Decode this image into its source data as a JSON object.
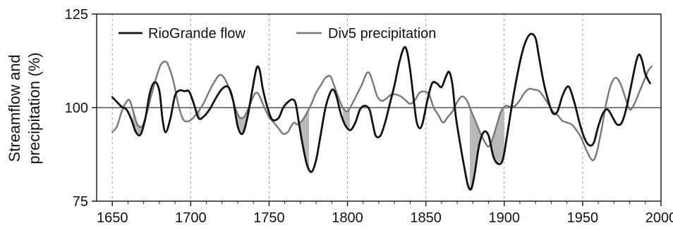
{
  "chart_data": {
    "type": "line",
    "title": "",
    "ylabel_line1": "Streamflow and",
    "ylabel_line2": "precipitation (%)",
    "xlabel": "",
    "xlim": [
      1640,
      2000
    ],
    "ylim": [
      75,
      125
    ],
    "x_ticks": [
      "1650",
      "1700",
      "1750",
      "1800",
      "1850",
      "1900",
      "1950",
      "2000"
    ],
    "y_ticks": [
      "75",
      "100",
      "125"
    ],
    "reference_line": 100,
    "grid": "vertical dashed at x ticks",
    "legend_placement": "top-left",
    "shading": "gray fill between the two series where the RioGrande flow series is below Div5 precipitation",
    "series": [
      {
        "name": "RioGrande flow",
        "color": "#111111",
        "points": [
          [
            1650,
            102.8
          ],
          [
            1653,
            101.5
          ],
          [
            1656,
            100.2
          ],
          [
            1659,
            99.5
          ],
          [
            1662,
            97.0
          ],
          [
            1665,
            93.5
          ],
          [
            1668,
            92.8
          ],
          [
            1671,
            97.0
          ],
          [
            1674,
            104.0
          ],
          [
            1677,
            106.8
          ],
          [
            1680,
            104.5
          ],
          [
            1682,
            97.0
          ],
          [
            1684,
            93.4
          ],
          [
            1687,
            97.0
          ],
          [
            1690,
            103.2
          ],
          [
            1693,
            104.6
          ],
          [
            1696,
            104.4
          ],
          [
            1699,
            104.3
          ],
          [
            1702,
            101.0
          ],
          [
            1705,
            97.2
          ],
          [
            1708,
            97.5
          ],
          [
            1712,
            99.5
          ],
          [
            1716,
            102.5
          ],
          [
            1720,
            105.0
          ],
          [
            1724,
            105.5
          ],
          [
            1727,
            102.0
          ],
          [
            1730,
            95.0
          ],
          [
            1733,
            93.0
          ],
          [
            1736,
            97.0
          ],
          [
            1739,
            104.0
          ],
          [
            1742,
            110.5
          ],
          [
            1744,
            110.0
          ],
          [
            1746,
            105.0
          ],
          [
            1749,
            100.0
          ],
          [
            1752,
            96.8
          ],
          [
            1756,
            97.2
          ],
          [
            1759,
            100.0
          ],
          [
            1762,
            101.5
          ],
          [
            1765,
            102.2
          ],
          [
            1767,
            101.0
          ],
          [
            1769,
            96.0
          ],
          [
            1771,
            91.0
          ],
          [
            1774,
            85.0
          ],
          [
            1777,
            82.8
          ],
          [
            1780,
            86.0
          ],
          [
            1783,
            93.0
          ],
          [
            1786,
            100.0
          ],
          [
            1789,
            104.0
          ],
          [
            1791,
            104.8
          ],
          [
            1793,
            103.0
          ],
          [
            1796,
            98.0
          ],
          [
            1799,
            95.0
          ],
          [
            1802,
            94.0
          ],
          [
            1805,
            96.0
          ],
          [
            1808,
            99.5
          ],
          [
            1811,
            100.5
          ],
          [
            1814,
            99.5
          ],
          [
            1816,
            96.0
          ],
          [
            1818,
            92.5
          ],
          [
            1821,
            92.5
          ],
          [
            1824,
            96.0
          ],
          [
            1827,
            101.0
          ],
          [
            1830,
            106.0
          ],
          [
            1833,
            112.0
          ],
          [
            1836,
            116.0
          ],
          [
            1838,
            115.0
          ],
          [
            1840,
            110.0
          ],
          [
            1842,
            103.0
          ],
          [
            1844,
            96.5
          ],
          [
            1846,
            94.5
          ],
          [
            1848,
            96.0
          ],
          [
            1851,
            102.0
          ],
          [
            1854,
            106.5
          ],
          [
            1857,
            106.5
          ],
          [
            1860,
            105.5
          ],
          [
            1863,
            108.5
          ],
          [
            1865,
            109.5
          ],
          [
            1867,
            106.0
          ],
          [
            1869,
            98.0
          ],
          [
            1872,
            90.0
          ],
          [
            1875,
            83.0
          ],
          [
            1877,
            79.0
          ],
          [
            1879,
            78.3
          ],
          [
            1881,
            82.0
          ],
          [
            1884,
            90.0
          ],
          [
            1887,
            93.5
          ],
          [
            1890,
            92.5
          ],
          [
            1893,
            87.0
          ],
          [
            1896,
            85.0
          ],
          [
            1899,
            86.0
          ],
          [
            1902,
            93.0
          ],
          [
            1905,
            101.0
          ],
          [
            1908,
            108.0
          ],
          [
            1911,
            114.0
          ],
          [
            1914,
            118.0
          ],
          [
            1917,
            119.7
          ],
          [
            1920,
            118.5
          ],
          [
            1922,
            114.0
          ],
          [
            1925,
            107.0
          ],
          [
            1928,
            102.0
          ],
          [
            1931,
            98.5
          ],
          [
            1934,
            99.0
          ],
          [
            1937,
            103.0
          ],
          [
            1940,
            105.5
          ],
          [
            1942,
            105.0
          ],
          [
            1945,
            101.0
          ],
          [
            1948,
            96.0
          ],
          [
            1951,
            92.0
          ],
          [
            1954,
            90.0
          ],
          [
            1957,
            90.5
          ],
          [
            1960,
            95.0
          ],
          [
            1963,
            98.5
          ],
          [
            1966,
            99.5
          ],
          [
            1969,
            97.5
          ],
          [
            1972,
            95.5
          ],
          [
            1975,
            96.0
          ],
          [
            1978,
            100.0
          ],
          [
            1981,
            106.0
          ],
          [
            1984,
            112.0
          ],
          [
            1986,
            114.2
          ],
          [
            1988,
            112.5
          ],
          [
            1990,
            109.0
          ],
          [
            1993,
            106.5
          ]
        ]
      },
      {
        "name": "Div5 precipitation",
        "color": "#777777",
        "points": [
          [
            1650,
            93.5
          ],
          [
            1653,
            95.0
          ],
          [
            1656,
            99.0
          ],
          [
            1659,
            101.5
          ],
          [
            1661,
            102.0
          ],
          [
            1663,
            99.5
          ],
          [
            1666,
            95.5
          ],
          [
            1669,
            95.0
          ],
          [
            1672,
            98.5
          ],
          [
            1675,
            103.5
          ],
          [
            1678,
            108.0
          ],
          [
            1681,
            111.5
          ],
          [
            1684,
            112.3
          ],
          [
            1686,
            111.0
          ],
          [
            1689,
            107.0
          ],
          [
            1692,
            101.0
          ],
          [
            1695,
            97.0
          ],
          [
            1698,
            96.3
          ],
          [
            1701,
            97.0
          ],
          [
            1704,
            98.5
          ],
          [
            1708,
            101.0
          ],
          [
            1712,
            104.5
          ],
          [
            1716,
            107.5
          ],
          [
            1719,
            108.8
          ],
          [
            1722,
            107.5
          ],
          [
            1725,
            104.5
          ],
          [
            1728,
            100.5
          ],
          [
            1731,
            97.5
          ],
          [
            1734,
            97.5
          ],
          [
            1737,
            100.0
          ],
          [
            1740,
            103.0
          ],
          [
            1742,
            104.0
          ],
          [
            1744,
            103.0
          ],
          [
            1747,
            100.0
          ],
          [
            1750,
            97.5
          ],
          [
            1753,
            96.0
          ],
          [
            1756,
            94.5
          ],
          [
            1759,
            93.0
          ],
          [
            1762,
            93.5
          ],
          [
            1764,
            95.0
          ],
          [
            1766,
            96.0
          ],
          [
            1768,
            95.5
          ],
          [
            1771,
            96.5
          ],
          [
            1774,
            98.5
          ],
          [
            1777,
            101.0
          ],
          [
            1780,
            104.0
          ],
          [
            1783,
            106.0
          ],
          [
            1786,
            108.0
          ],
          [
            1789,
            108.4
          ],
          [
            1791,
            106.5
          ],
          [
            1794,
            103.0
          ],
          [
            1797,
            100.0
          ],
          [
            1800,
            99.0
          ],
          [
            1803,
            101.0
          ],
          [
            1806,
            103.5
          ],
          [
            1809,
            106.0
          ],
          [
            1812,
            109.0
          ],
          [
            1814,
            109.2
          ],
          [
            1816,
            107.0
          ],
          [
            1819,
            103.0
          ],
          [
            1822,
            101.8
          ],
          [
            1825,
            102.5
          ],
          [
            1828,
            103.5
          ],
          [
            1831,
            103.5
          ],
          [
            1834,
            103.0
          ],
          [
            1837,
            102.0
          ],
          [
            1840,
            101.0
          ],
          [
            1843,
            102.0
          ],
          [
            1846,
            104.0
          ],
          [
            1849,
            104.3
          ],
          [
            1852,
            103.5
          ],
          [
            1855,
            100.0
          ],
          [
            1858,
            98.0
          ],
          [
            1861,
            96.0
          ],
          [
            1864,
            97.5
          ],
          [
            1867,
            99.0
          ],
          [
            1870,
            101.5
          ],
          [
            1873,
            103.0
          ],
          [
            1876,
            102.0
          ],
          [
            1879,
            99.0
          ],
          [
            1882,
            96.0
          ],
          [
            1885,
            93.0
          ],
          [
            1888,
            90.5
          ],
          [
            1890,
            89.6
          ],
          [
            1892,
            91.0
          ],
          [
            1895,
            95.0
          ],
          [
            1898,
            99.0
          ],
          [
            1901,
            100.5
          ],
          [
            1904,
            100.2
          ],
          [
            1907,
            100.5
          ],
          [
            1910,
            102.0
          ],
          [
            1913,
            104.0
          ],
          [
            1916,
            105.0
          ],
          [
            1919,
            104.8
          ],
          [
            1922,
            104.5
          ],
          [
            1925,
            103.0
          ],
          [
            1928,
            101.0
          ],
          [
            1931,
            99.0
          ],
          [
            1934,
            98.0
          ],
          [
            1937,
            96.5
          ],
          [
            1940,
            96.0
          ],
          [
            1943,
            95.5
          ],
          [
            1946,
            94.0
          ],
          [
            1949,
            92.0
          ],
          [
            1952,
            89.0
          ],
          [
            1955,
            86.5
          ],
          [
            1957,
            86.0
          ],
          [
            1959,
            88.0
          ],
          [
            1962,
            94.0
          ],
          [
            1965,
            101.0
          ],
          [
            1968,
            106.0
          ],
          [
            1971,
            108.0
          ],
          [
            1974,
            106.5
          ],
          [
            1977,
            103.0
          ],
          [
            1980,
            99.5
          ],
          [
            1983,
            101.0
          ],
          [
            1986,
            104.0
          ],
          [
            1989,
            107.0
          ],
          [
            1992,
            110.0
          ],
          [
            1994,
            111.0
          ]
        ]
      }
    ]
  },
  "colors": {
    "shading": "#b9b9b9",
    "frame": "#222222",
    "reference_line": "#555555",
    "grid": "#999999"
  }
}
